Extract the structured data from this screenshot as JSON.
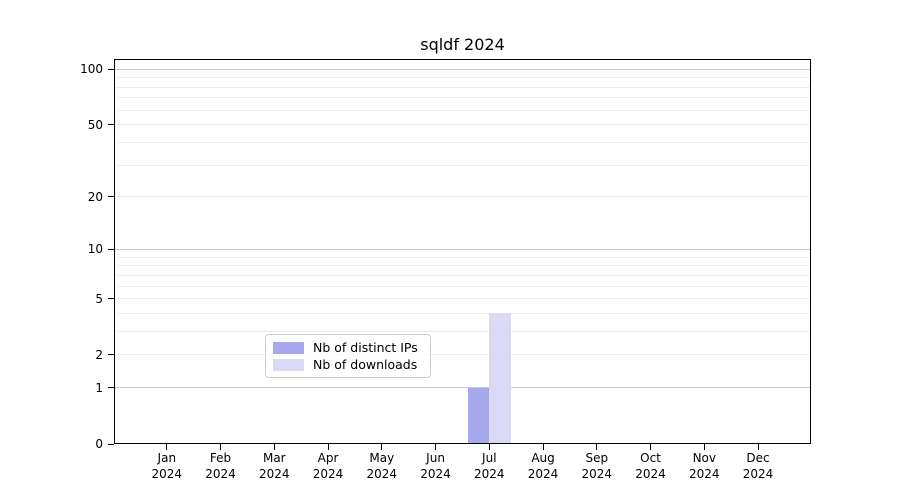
{
  "chart_data": {
    "type": "bar",
    "title": "sqldf 2024",
    "categories": [
      "Jan 2024",
      "Feb 2024",
      "Mar 2024",
      "Apr 2024",
      "May 2024",
      "Jun 2024",
      "Jul 2024",
      "Aug 2024",
      "Sep 2024",
      "Oct 2024",
      "Nov 2024",
      "Dec 2024"
    ],
    "series": [
      {
        "name": "Nb of distinct IPs",
        "color": "#a8a8ee",
        "values": [
          0,
          0,
          0,
          0,
          0,
          0,
          1,
          0,
          0,
          0,
          0,
          0
        ]
      },
      {
        "name": "Nb of downloads",
        "color": "#dadaf6",
        "values": [
          0,
          0,
          0,
          0,
          0,
          0,
          4,
          0,
          0,
          0,
          0,
          0
        ]
      }
    ],
    "xlabel": "",
    "ylabel": "",
    "yscale": "log1p",
    "ylim": [
      0,
      100
    ],
    "yticks": [
      0,
      1,
      2,
      5,
      10,
      20,
      50,
      100
    ],
    "grid": "horizontal",
    "major_grid_values": [
      1,
      10,
      100
    ],
    "minor_grid_values": [
      2,
      3,
      4,
      5,
      6,
      7,
      8,
      9,
      20,
      30,
      40,
      50,
      60,
      70,
      80,
      90
    ],
    "legend_position": "lower center"
  },
  "colors": {
    "background": "#ffffff",
    "axis": "#000000",
    "text": "#000000",
    "grid_major": "#c9c9c9",
    "grid_minor": "#ececec",
    "legend_border": "#cccccc",
    "bar_distinct_ips": "#a8a8ee",
    "bar_downloads": "#dadaf6"
  }
}
